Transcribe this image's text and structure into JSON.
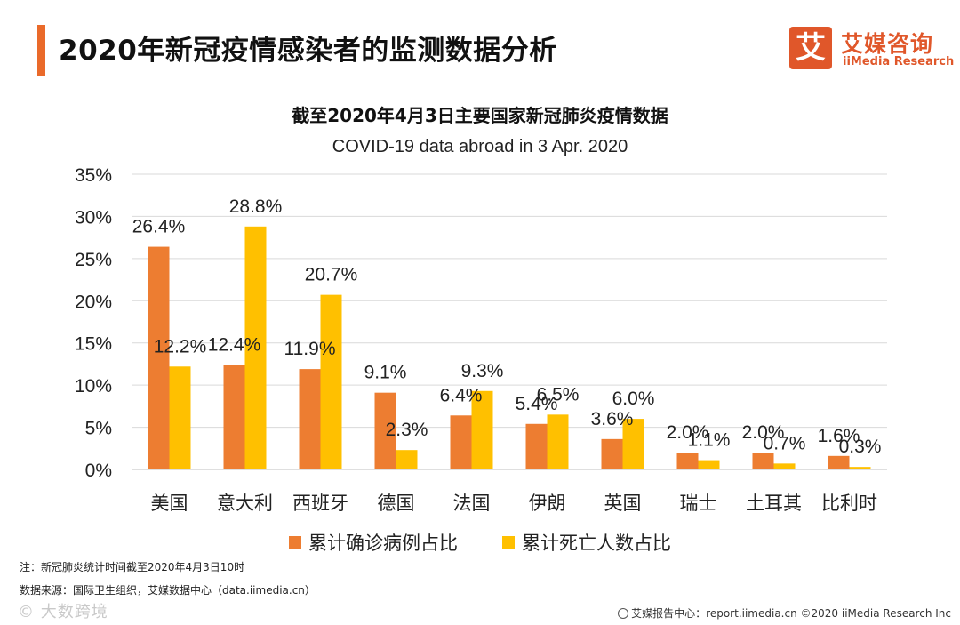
{
  "header": {
    "title": "2020年新冠疫情感染者的监测数据分析",
    "accent_color": "#ea6a2a"
  },
  "logo": {
    "mark_char": "艾",
    "name_cn": "艾媒咨询",
    "name_en": "iiMedia Research"
  },
  "chart_data": {
    "type": "bar",
    "title": "截至2020年4月3日主要国家新冠肺炎疫情数据",
    "subtitle": "COVID-19 data abroad in 3 Apr. 2020",
    "categories": [
      "美国",
      "意大利",
      "西班牙",
      "德国",
      "法国",
      "伊朗",
      "英国",
      "瑞士",
      "土耳其",
      "比利时"
    ],
    "series": [
      {
        "name": "累计确诊病例占比",
        "color": "#ed7d31",
        "values": [
          26.4,
          12.4,
          11.9,
          9.1,
          6.4,
          5.4,
          3.6,
          2.0,
          2.0,
          1.6
        ],
        "labels": [
          "26.4%",
          "12.4%",
          "11.9%",
          "9.1%",
          "6.4%",
          "5.4%",
          "3.6%",
          "2.0%",
          "2.0%",
          "1.6%"
        ]
      },
      {
        "name": "累计死亡人数占比",
        "color": "#ffc000",
        "values": [
          12.2,
          28.8,
          20.7,
          2.3,
          9.3,
          6.5,
          6.0,
          1.1,
          0.7,
          0.3
        ],
        "labels": [
          "12.2%",
          "28.8%",
          "20.7%",
          "2.3%",
          "9.3%",
          "6.5%",
          "6.0%",
          "1.1%",
          "0.7%",
          "0.3%"
        ]
      }
    ],
    "y_ticks": [
      "0%",
      "5%",
      "10%",
      "15%",
      "20%",
      "25%",
      "30%",
      "35%"
    ],
    "ylim": [
      0,
      35
    ],
    "grid": true,
    "legend_position": "bottom"
  },
  "note": "注：新冠肺炎统计时间截至2020年4月3日10时",
  "source": "数据来源：国际卫生组织，艾媒数据中心（data.iimedia.cn）",
  "watermark": "© 大数跨境",
  "footer": "艾媒报告中心：report.iimedia.cn  ©2020  iiMedia Research  Inc"
}
